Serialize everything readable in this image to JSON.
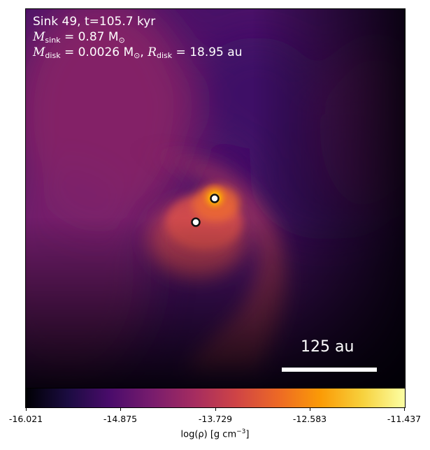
{
  "info": {
    "line1": "Sink 49, t=105.7 kyr",
    "m_sink_label": "M",
    "m_sink_sub": "sink",
    "m_sink_value": " = 0.87 M",
    "m_sink_unit_sub": "⊙",
    "m_disk_label": "M",
    "m_disk_sub": "disk",
    "m_disk_value": " = 0.0026 M",
    "m_disk_unit_sub": "⊙",
    "r_disk_sep": ", ",
    "r_disk_label": "R",
    "r_disk_sub": "disk",
    "r_disk_value": " = 18.95 au"
  },
  "scale_bar": {
    "label": "125 au"
  },
  "colorbar": {
    "ticks": [
      "-16.021",
      "-14.875",
      "-13.729",
      "-12.583",
      "-11.437"
    ],
    "label_prefix": "log(ρ) [g cm",
    "label_exp": "−3",
    "label_suffix": "]",
    "colormap": "inferno"
  },
  "sinks": {
    "count": 2
  }
}
